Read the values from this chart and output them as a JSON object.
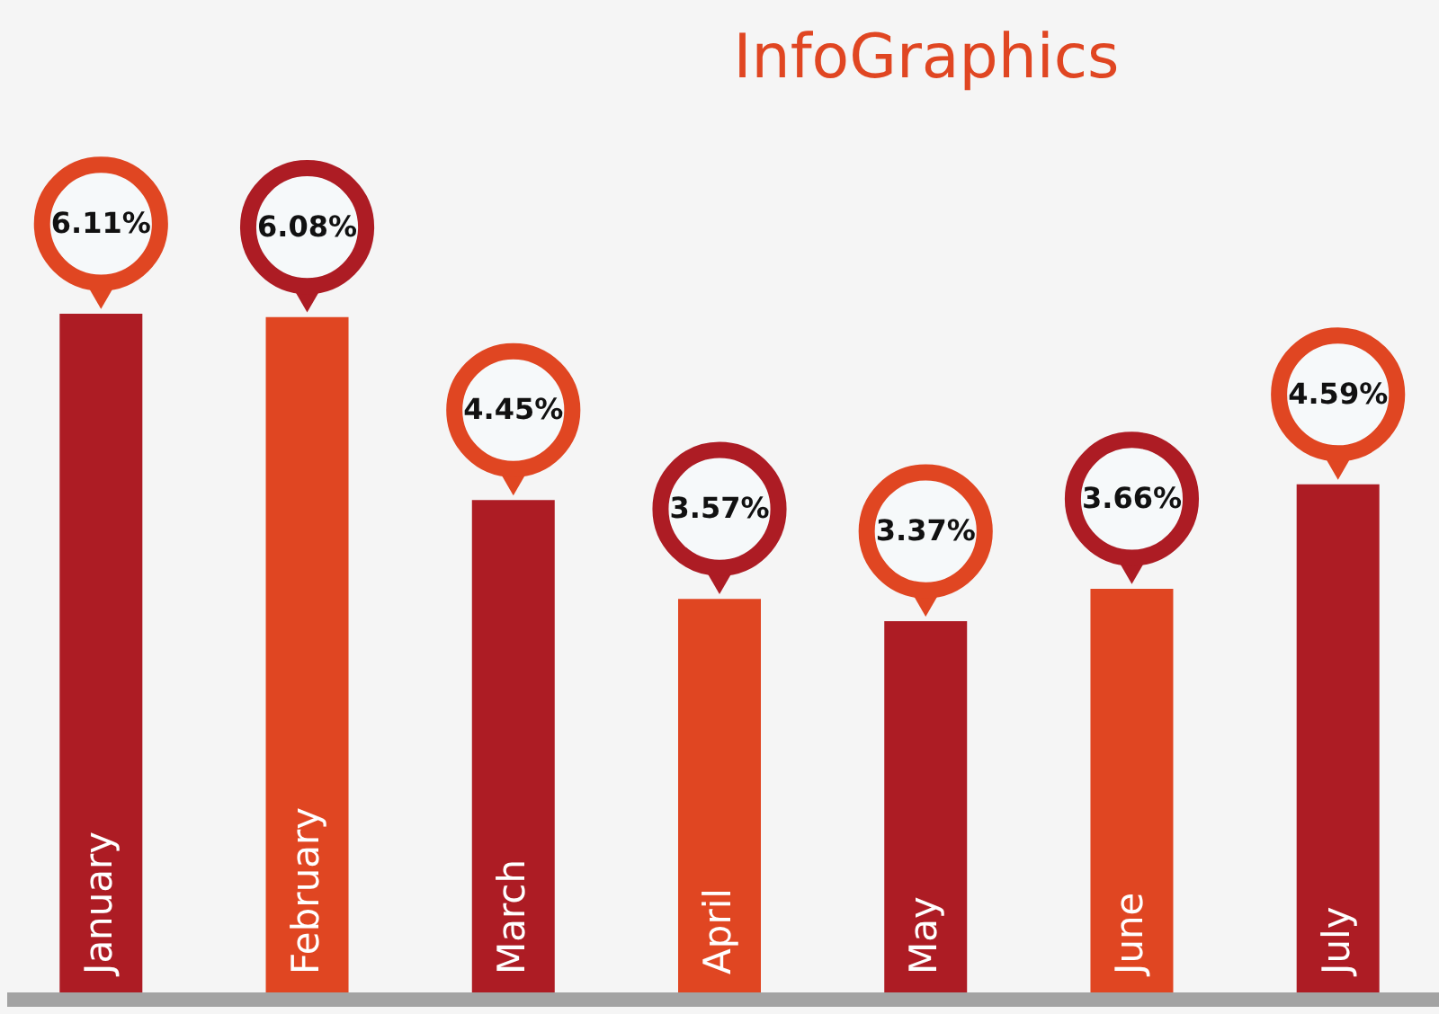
{
  "chart_data": {
    "type": "bar",
    "title": "InfoGraphics",
    "categories": [
      "January",
      "February",
      "March",
      "April",
      "May",
      "June",
      "July"
    ],
    "values": [
      6.11,
      6.08,
      4.45,
      3.57,
      3.37,
      3.66,
      4.59
    ],
    "value_labels": [
      "6.11%",
      "6.08%",
      "4.45%",
      "3.57%",
      "3.37%",
      "3.66%",
      "4.59%"
    ],
    "colors": [
      "#ad1c24",
      "#e04622",
      "#ad1c24",
      "#e04622",
      "#ad1c24",
      "#e04622",
      "#ad1c24"
    ],
    "data_labels": false
  }
}
